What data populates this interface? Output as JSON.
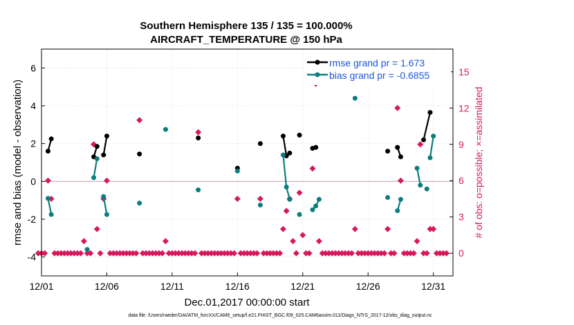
{
  "chart_data": {
    "type": "line",
    "title": [
      "Southern Hemisphere 135 / 135 = 100.000%",
      "AIRCRAFT_TEMPERATURE @ 150 hPa"
    ],
    "xlabel": "Dec.01,2017 00:00:00 start",
    "ylabel": "rmse and bias (model - observation)",
    "y2label": "# of obs: o=possible; ×=assimilated",
    "footer": "data file: /Users/raeder/DAI/ATM_forcXX/CAM6_setup/f.e21.FHIST_BGC.f09_025.CAM6assim.011/Diags_NTrS_2017-12/obs_diag_output.nc",
    "xlim": [
      0,
      31.5
    ],
    "ylim": [
      -5,
      7
    ],
    "y2lim": [
      -1.875,
      16.875
    ],
    "x_ticks": [
      0,
      5,
      10,
      15,
      20,
      25,
      30
    ],
    "x_tick_labels": [
      "12/01",
      "12/06",
      "12/11",
      "12/16",
      "12/21",
      "12/26",
      "12/31"
    ],
    "y_ticks": [
      -4,
      -2,
      0,
      2,
      4,
      6
    ],
    "y_tick_labels": [
      "-4",
      "-2",
      "0",
      "2",
      "4",
      "6"
    ],
    "y2_ticks": [
      0,
      3,
      6,
      9,
      12,
      15
    ],
    "y2_tick_labels": [
      "0",
      "3",
      "6",
      "9",
      "12",
      "15"
    ],
    "zero_line": 0,
    "series": [
      {
        "name": "rmse",
        "legend": "rmse grand pr = 1.673",
        "color": "#000000",
        "points": [
          [
            0.5,
            1.6
          ],
          [
            0.75,
            2.25
          ],
          [
            4.0,
            1.3
          ],
          [
            4.25,
            1.85
          ],
          [
            4.75,
            1.4
          ],
          [
            5.0,
            2.4
          ],
          [
            7.5,
            1.45
          ],
          [
            12.0,
            2.3
          ],
          [
            15.0,
            0.7
          ],
          [
            16.75,
            2.0
          ],
          [
            18.5,
            2.4
          ],
          [
            18.75,
            1.35
          ],
          [
            19.0,
            1.5
          ],
          [
            19.75,
            2.45
          ],
          [
            20.75,
            1.75
          ],
          [
            21.0,
            1.8
          ],
          [
            26.5,
            1.6
          ],
          [
            27.25,
            1.8
          ],
          [
            27.5,
            1.3
          ],
          [
            29.25,
            2.2
          ],
          [
            29.75,
            3.65
          ]
        ],
        "segments": [
          [
            [
              0.5,
              1.6
            ],
            [
              0.75,
              2.25
            ]
          ],
          [
            [
              4.0,
              1.3
            ],
            [
              4.25,
              1.85
            ]
          ],
          [
            [
              4.75,
              1.4
            ],
            [
              5.0,
              2.4
            ]
          ],
          [
            [
              18.5,
              2.4
            ],
            [
              18.75,
              1.35
            ],
            [
              19.0,
              1.5
            ]
          ],
          [
            [
              20.75,
              1.75
            ],
            [
              21.0,
              1.8
            ]
          ],
          [
            [
              27.25,
              1.8
            ],
            [
              27.5,
              1.3
            ]
          ],
          [
            [
              29.25,
              2.2
            ],
            [
              29.75,
              3.65
            ]
          ]
        ]
      },
      {
        "name": "bias",
        "legend": "bias grand pr = -0.6855",
        "color": "#0b7d7d",
        "points": [
          [
            0.5,
            -0.9
          ],
          [
            0.75,
            -1.75
          ],
          [
            3.5,
            -3.6
          ],
          [
            4.0,
            0.2
          ],
          [
            4.25,
            1.2
          ],
          [
            4.75,
            -0.8
          ],
          [
            5.0,
            -1.75
          ],
          [
            7.5,
            -1.15
          ],
          [
            9.5,
            2.75
          ],
          [
            12.0,
            -0.45
          ],
          [
            15.0,
            0.55
          ],
          [
            16.75,
            -1.25
          ],
          [
            18.5,
            1.4
          ],
          [
            18.75,
            -0.3
          ],
          [
            19.0,
            -0.95
          ],
          [
            19.75,
            -1.75
          ],
          [
            20.75,
            -1.5
          ],
          [
            21.0,
            -1.3
          ],
          [
            21.25,
            -0.95
          ],
          [
            24.0,
            4.4
          ],
          [
            26.5,
            -0.85
          ],
          [
            27.25,
            -1.55
          ],
          [
            27.5,
            -0.95
          ],
          [
            28.75,
            0.7
          ],
          [
            29.0,
            -0.2
          ],
          [
            29.5,
            -0.4
          ],
          [
            29.75,
            1.25
          ],
          [
            30.0,
            2.4
          ]
        ],
        "segments": [
          [
            [
              0.5,
              -0.9
            ],
            [
              0.75,
              -1.75
            ]
          ],
          [
            [
              4.0,
              0.2
            ],
            [
              4.25,
              1.2
            ]
          ],
          [
            [
              4.75,
              -0.8
            ],
            [
              5.0,
              -1.75
            ]
          ],
          [
            [
              18.5,
              1.4
            ],
            [
              18.75,
              -0.3
            ],
            [
              19.0,
              -0.95
            ]
          ],
          [
            [
              20.75,
              -1.5
            ],
            [
              21.0,
              -1.3
            ],
            [
              21.25,
              -0.95
            ]
          ],
          [
            [
              27.25,
              -1.55
            ],
            [
              27.5,
              -0.95
            ]
          ],
          [
            [
              28.75,
              0.7
            ],
            [
              29.0,
              -0.2
            ]
          ],
          [
            [
              29.75,
              1.25
            ],
            [
              30.0,
              2.4
            ]
          ]
        ]
      },
      {
        "name": "obs_count",
        "color": "#d6195c",
        "axis": "right",
        "points": [
          [
            -0.25,
            0
          ],
          [
            0,
            0
          ],
          [
            0.25,
            0
          ],
          [
            0.5,
            6
          ],
          [
            0.75,
            4.5
          ],
          [
            1.0,
            0
          ],
          [
            1.25,
            0
          ],
          [
            1.5,
            0
          ],
          [
            1.75,
            0
          ],
          [
            2.0,
            0
          ],
          [
            2.25,
            0
          ],
          [
            2.5,
            0
          ],
          [
            2.75,
            0
          ],
          [
            3.0,
            0
          ],
          [
            3.25,
            1.0
          ],
          [
            3.5,
            0
          ],
          [
            3.75,
            0
          ],
          [
            4.0,
            9
          ],
          [
            4.25,
            2.0
          ],
          [
            4.5,
            0
          ],
          [
            4.75,
            4.5
          ],
          [
            5.0,
            6
          ],
          [
            5.25,
            0
          ],
          [
            5.5,
            0
          ],
          [
            5.75,
            0
          ],
          [
            6.0,
            0
          ],
          [
            6.25,
            0
          ],
          [
            6.5,
            0
          ],
          [
            6.75,
            0
          ],
          [
            7.0,
            0
          ],
          [
            7.25,
            0
          ],
          [
            7.5,
            11
          ],
          [
            7.75,
            0
          ],
          [
            8.0,
            0
          ],
          [
            8.25,
            0
          ],
          [
            8.5,
            0
          ],
          [
            8.75,
            0
          ],
          [
            9.0,
            0
          ],
          [
            9.25,
            0
          ],
          [
            9.5,
            1.0
          ],
          [
            9.75,
            0
          ],
          [
            10.0,
            0
          ],
          [
            10.25,
            0
          ],
          [
            10.5,
            0
          ],
          [
            10.75,
            0
          ],
          [
            11.0,
            0
          ],
          [
            11.25,
            0
          ],
          [
            11.5,
            0
          ],
          [
            11.75,
            0
          ],
          [
            12.0,
            10
          ],
          [
            12.25,
            0
          ],
          [
            12.5,
            0
          ],
          [
            12.75,
            0
          ],
          [
            13.0,
            0
          ],
          [
            13.25,
            0
          ],
          [
            13.5,
            0
          ],
          [
            13.75,
            0
          ],
          [
            14.0,
            0
          ],
          [
            14.25,
            0
          ],
          [
            14.5,
            0
          ],
          [
            14.75,
            0
          ],
          [
            15.0,
            4.5
          ],
          [
            15.25,
            0
          ],
          [
            15.5,
            0
          ],
          [
            15.75,
            0
          ],
          [
            16.0,
            0
          ],
          [
            16.25,
            0
          ],
          [
            16.5,
            0
          ],
          [
            16.75,
            4.5
          ],
          [
            17.0,
            0
          ],
          [
            17.25,
            0
          ],
          [
            17.5,
            0
          ],
          [
            17.75,
            0
          ],
          [
            18.0,
            0
          ],
          [
            18.25,
            0
          ],
          [
            18.5,
            2.0
          ],
          [
            18.75,
            3.5
          ],
          [
            19.0,
            4.5
          ],
          [
            19.25,
            1.0
          ],
          [
            19.5,
            0
          ],
          [
            19.75,
            5
          ],
          [
            20.0,
            1.5
          ],
          [
            20.25,
            0
          ],
          [
            20.5,
            0
          ],
          [
            20.75,
            7.0
          ],
          [
            21.0,
            14
          ],
          [
            21.25,
            1.0
          ],
          [
            21.5,
            0
          ],
          [
            21.75,
            0
          ],
          [
            22.0,
            0
          ],
          [
            22.25,
            0
          ],
          [
            22.5,
            0
          ],
          [
            22.75,
            0
          ],
          [
            23.0,
            0
          ],
          [
            23.25,
            0
          ],
          [
            23.5,
            0
          ],
          [
            23.75,
            0
          ],
          [
            24.0,
            2.0
          ],
          [
            24.25,
            0
          ],
          [
            24.5,
            0
          ],
          [
            24.75,
            0
          ],
          [
            25.0,
            0
          ],
          [
            25.25,
            0
          ],
          [
            25.5,
            0
          ],
          [
            25.75,
            0
          ],
          [
            26.0,
            0
          ],
          [
            26.25,
            0
          ],
          [
            26.5,
            2.0
          ],
          [
            26.75,
            0
          ],
          [
            27.0,
            0
          ],
          [
            27.25,
            12
          ],
          [
            27.5,
            6
          ],
          [
            27.75,
            0
          ],
          [
            28.0,
            0
          ],
          [
            28.25,
            0
          ],
          [
            28.5,
            0
          ],
          [
            28.75,
            1.0
          ],
          [
            29.0,
            9
          ],
          [
            29.25,
            0
          ],
          [
            29.5,
            0
          ],
          [
            29.75,
            2.0
          ],
          [
            30.0,
            2.0
          ],
          [
            30.25,
            0
          ],
          [
            30.5,
            0
          ],
          [
            30.75,
            0
          ],
          [
            31.0,
            0
          ]
        ]
      }
    ],
    "legend_placement": "top-right"
  }
}
